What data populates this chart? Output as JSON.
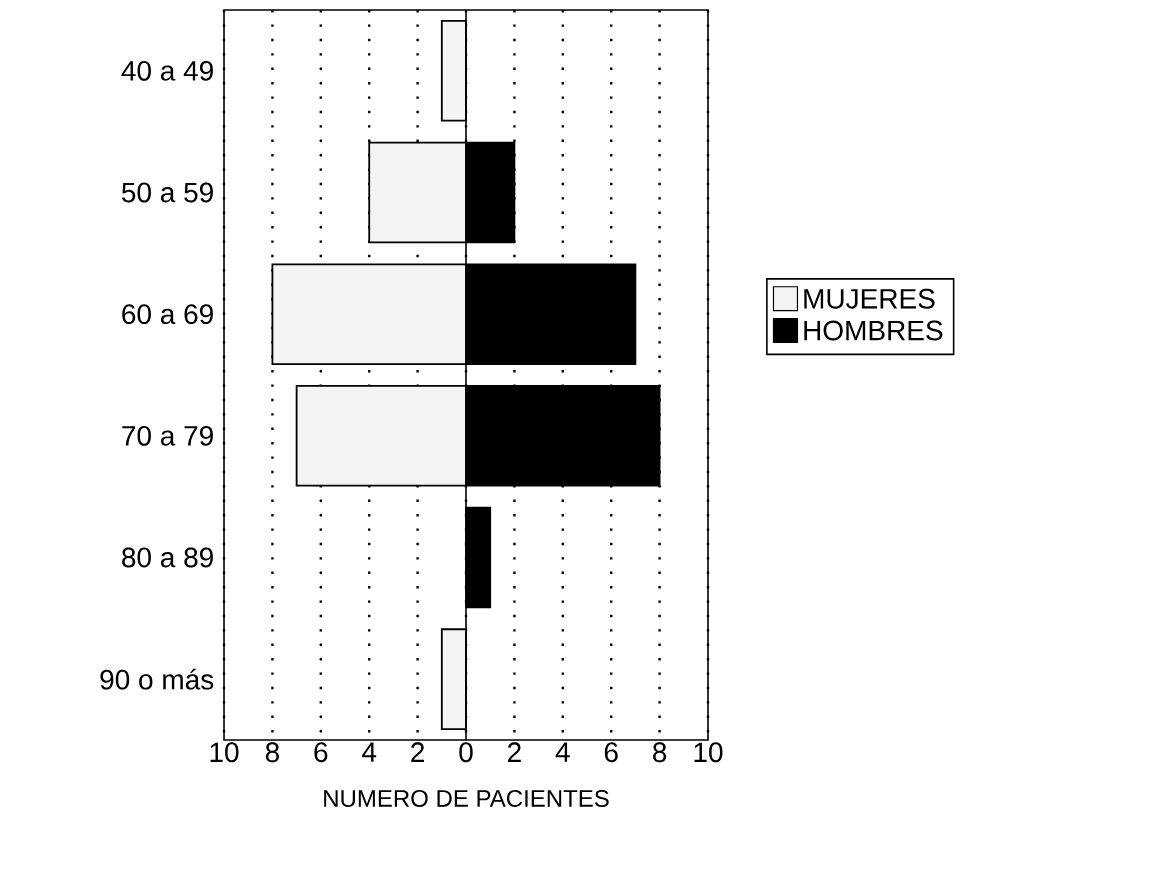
{
  "chart_data": {
    "type": "bar",
    "orientation": "horizontal",
    "xlabel": "NUMERO DE PACIENTES",
    "categories": [
      "40 a 49",
      "50 a 59",
      "60 a 69",
      "70 a 79",
      "80 a 89",
      "90 o más"
    ],
    "series": [
      {
        "name": "MUJERES",
        "color": "#f4f4f4",
        "values": [
          -1,
          -4,
          -8,
          -7,
          0,
          -1
        ]
      },
      {
        "name": "HOMBRES",
        "color": "#000000",
        "values": [
          0,
          2,
          7,
          8,
          1,
          0
        ]
      }
    ],
    "xlim": [
      -10,
      10
    ],
    "xticks": [
      {
        "value": -10,
        "label": "10"
      },
      {
        "value": -8,
        "label": "8"
      },
      {
        "value": -6,
        "label": "6"
      },
      {
        "value": -4,
        "label": "4"
      },
      {
        "value": -2,
        "label": "2"
      },
      0,
      2,
      4,
      6,
      8,
      10
    ],
    "grid": "x",
    "legend": "right",
    "stacked": true
  }
}
